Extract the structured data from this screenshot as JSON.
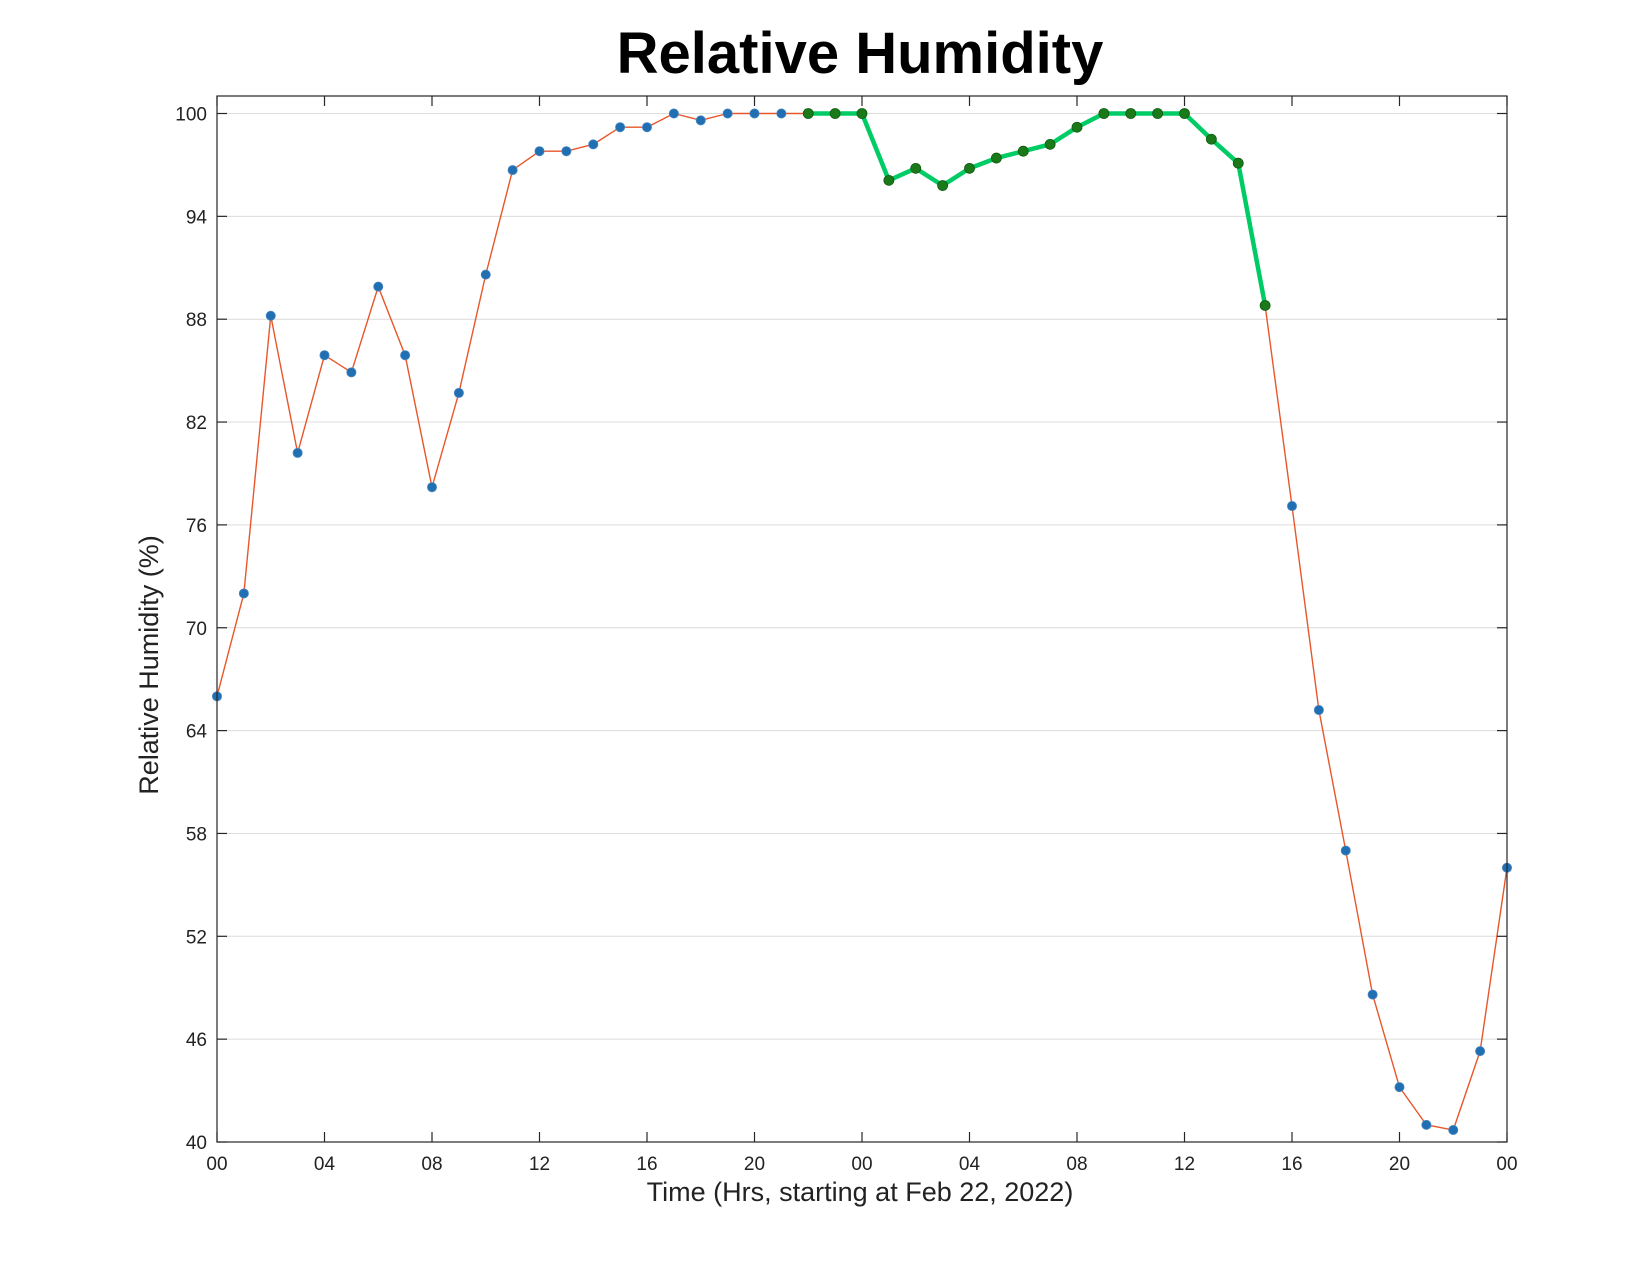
{
  "chart_data": {
    "type": "line",
    "title": "Relative Humidity",
    "xlabel": "Time (Hrs, starting at Feb 22, 2022)",
    "ylabel": "Relative Humidity (%)",
    "ylim": [
      40,
      100
    ],
    "yticks": [
      40,
      46,
      52,
      58,
      64,
      70,
      76,
      82,
      88,
      94,
      100
    ],
    "xlim": [
      0,
      48
    ],
    "xtick_labels": [
      "00",
      "04",
      "08",
      "12",
      "16",
      "20",
      "00",
      "04",
      "08",
      "12",
      "16",
      "20",
      "00"
    ],
    "grid": "horizontal",
    "x_hours": [
      0,
      1,
      2,
      3,
      4,
      5,
      6,
      7,
      8,
      9,
      10,
      11,
      12,
      13,
      14,
      15,
      16,
      17,
      18,
      19,
      20,
      21,
      22,
      23,
      24,
      25,
      26,
      27,
      28,
      29,
      30,
      31,
      32,
      33,
      34,
      35,
      36,
      37,
      38,
      39,
      40,
      41,
      42,
      43,
      44,
      45,
      46,
      47,
      48
    ],
    "series": [
      {
        "color": "#e8562a",
        "marker_color": "#1f6fb2",
        "values": [
          66,
          72,
          88.2,
          80.2,
          85.9,
          84.9,
          89.9,
          85.9,
          78.2,
          83.7,
          90.6,
          96.7,
          97.8,
          97.8,
          98.2,
          99.2,
          99.2,
          100,
          99.6,
          100,
          100,
          100,
          100,
          100,
          100,
          96.1,
          96.8,
          95.8,
          96.8,
          97.4,
          97.8,
          98.2,
          99.2,
          100,
          100,
          100,
          100,
          98.5,
          97.1,
          88.8,
          77.1,
          65.2,
          57,
          48.6,
          43.2,
          41,
          40.7,
          45.3,
          56
        ]
      },
      {
        "color": "#00cc66",
        "marker_color": "#1a7a1a",
        "x_start_hour": 22,
        "values": [
          100,
          100,
          100,
          96.1,
          96.8,
          95.8,
          96.8,
          97.4,
          97.8,
          98.2,
          99.2,
          100,
          100,
          100,
          100,
          98.5,
          97.1,
          88.8
        ]
      }
    ]
  }
}
